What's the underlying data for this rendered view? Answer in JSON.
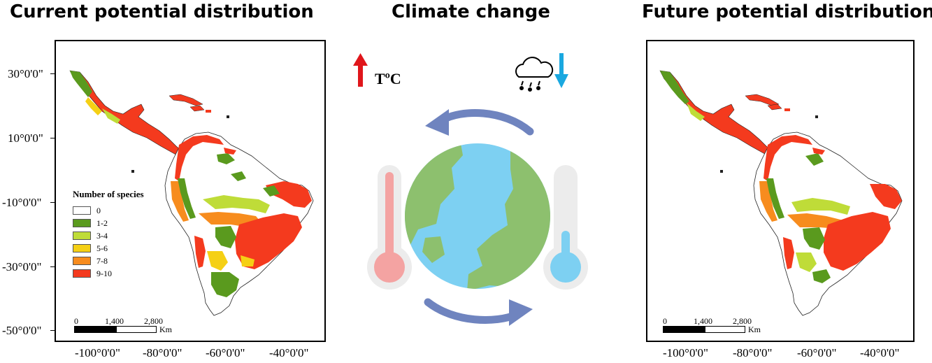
{
  "titles": {
    "current": "Current potential distribution",
    "climate": "Climate change",
    "future": "Future potential distribution"
  },
  "temperature_label": "TºC",
  "lat_labels": [
    "30°0'0\"",
    "10°0'0\"",
    "-10°0'0\"",
    "-30°0'0\"",
    "-50°0'0\""
  ],
  "lon_labels": [
    "-100°0'0\"",
    "-80°0'0\"",
    "-60°0'0\"",
    "-40°0'0\""
  ],
  "legend": {
    "title": "Number of species",
    "items": [
      {
        "label": "0",
        "color": "#ffffff"
      },
      {
        "label": "1-2",
        "color": "#5a9a1e"
      },
      {
        "label": "3-4",
        "color": "#bfdc38"
      },
      {
        "label": "5-6",
        "color": "#f5d015"
      },
      {
        "label": "7-8",
        "color": "#f78c1e"
      },
      {
        "label": "9-10",
        "color": "#f43a1e"
      }
    ]
  },
  "scalebar": {
    "ticks": [
      "0",
      "1,400",
      "2,800"
    ],
    "unit": "Km"
  },
  "icons": [
    "temperature-up-arrow-icon",
    "rain-cloud-icon",
    "precipitation-down-arrow-icon",
    "earth-globe-icon",
    "hot-thermometer-icon",
    "cold-thermometer-icon",
    "cycle-arrows-icon"
  ],
  "colors": {
    "arrow_up": "#e0161b",
    "arrow_down": "#1aa8e0",
    "cycle": "#6f84bf",
    "globe_land": "#8dc06e",
    "globe_water": "#7dd0f2"
  }
}
